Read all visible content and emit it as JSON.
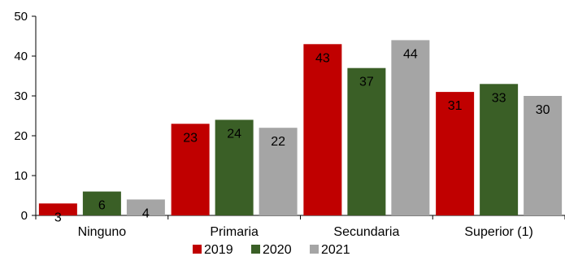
{
  "chart_data": {
    "type": "bar",
    "categories": [
      "Ninguno",
      "Primaria",
      "Secundaria",
      "Superior (1)"
    ],
    "series": [
      {
        "name": "2019",
        "color": "#c00000",
        "values": [
          3,
          23,
          43,
          31
        ]
      },
      {
        "name": "2020",
        "color": "#3a5f26",
        "values": [
          6,
          24,
          37,
          33
        ]
      },
      {
        "name": "2021",
        "color": "#a5a5a5",
        "values": [
          4,
          22,
          44,
          30
        ]
      }
    ],
    "ylim": [
      0,
      50
    ],
    "yticks": [
      "0",
      "10",
      "20",
      "30",
      "40",
      "50"
    ],
    "grid": false,
    "legend": "bottom-center"
  }
}
